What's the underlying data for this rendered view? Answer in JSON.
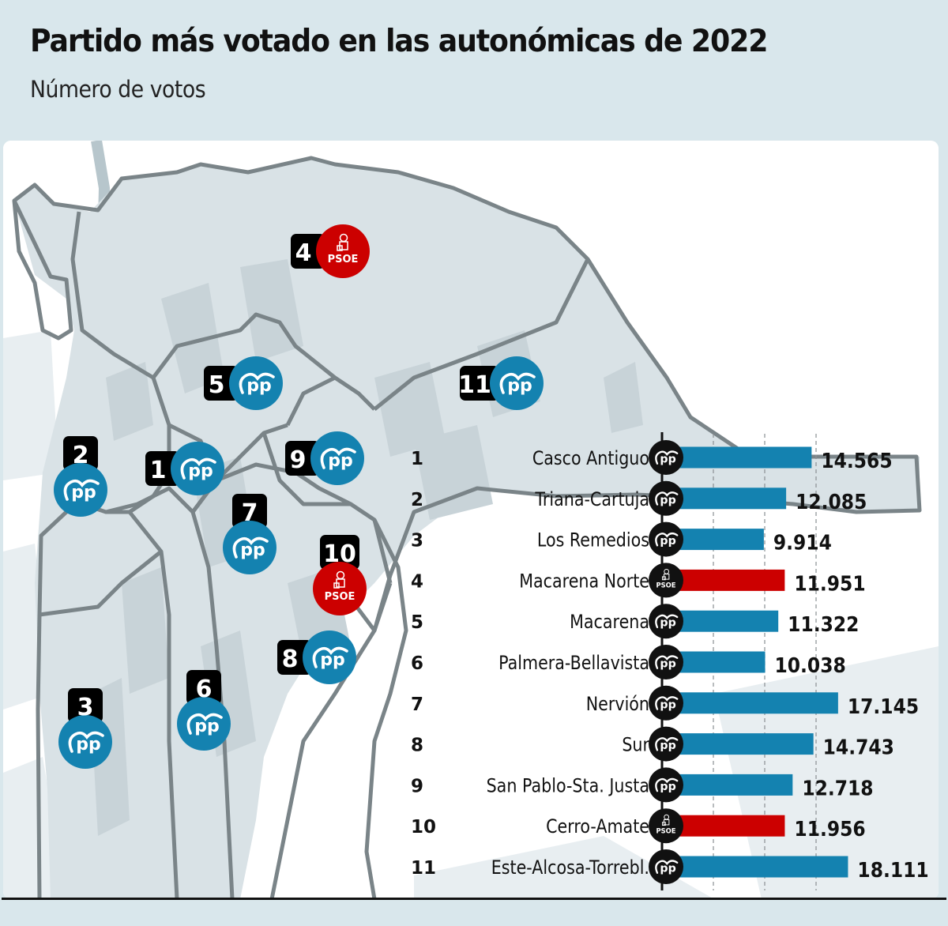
{
  "header": {
    "title": "Partido más votado en las autonómicas de 2022",
    "subtitle": "Número de votos"
  },
  "colors": {
    "pp": "#1482b0",
    "psoe": "#cc0000",
    "number_box": "#000000",
    "background": "#d9e7ec",
    "map_fill": "#d9e2e6",
    "map_border": "#7a8488"
  },
  "parties": {
    "pp": {
      "label": "pp",
      "icon": "pp-logo-icon"
    },
    "psoe": {
      "label": "PSOE",
      "icon": "psoe-rose-fist-icon"
    }
  },
  "map_markers": [
    {
      "number": "1",
      "party": "pp"
    },
    {
      "number": "2",
      "party": "pp"
    },
    {
      "number": "3",
      "party": "pp"
    },
    {
      "number": "4",
      "party": "psoe"
    },
    {
      "number": "5",
      "party": "pp"
    },
    {
      "number": "6",
      "party": "pp"
    },
    {
      "number": "7",
      "party": "pp"
    },
    {
      "number": "8",
      "party": "pp"
    },
    {
      "number": "9",
      "party": "pp"
    },
    {
      "number": "10",
      "party": "psoe"
    },
    {
      "number": "11",
      "party": "pp"
    }
  ],
  "chart_data": {
    "type": "bar",
    "orientation": "horizontal",
    "title": "Partido más votado en las autonómicas de 2022",
    "subtitle": "Número de votos",
    "xlabel": "",
    "ylabel": "",
    "xlim": [
      0,
      20000
    ],
    "gridlines": [
      5000,
      10000,
      15000
    ],
    "grid": true,
    "categories": [
      "Casco Antiguo",
      "Triana-Cartuja",
      "Los Remedios",
      "Macarena Norte",
      "Macarena",
      "Palmera-Bellavista",
      "Nervión",
      "Sur",
      "San Pablo-Sta. Justa",
      "Cerro-Amate",
      "Este-Alcosa-Torrebl."
    ],
    "numbers": [
      "1",
      "2",
      "3",
      "4",
      "5",
      "6",
      "7",
      "8",
      "9",
      "10",
      "11"
    ],
    "values": [
      14565,
      12085,
      9914,
      11951,
      11322,
      10038,
      17145,
      14743,
      12718,
      11956,
      18111
    ],
    "value_labels": [
      "14.565",
      "12.085",
      "9.914",
      "11.951",
      "11.322",
      "10.038",
      "17.145",
      "14.743",
      "12.718",
      "11.956",
      "18.111"
    ],
    "winner_party": [
      "pp",
      "pp",
      "pp",
      "psoe",
      "pp",
      "pp",
      "pp",
      "pp",
      "pp",
      "psoe",
      "pp"
    ]
  }
}
